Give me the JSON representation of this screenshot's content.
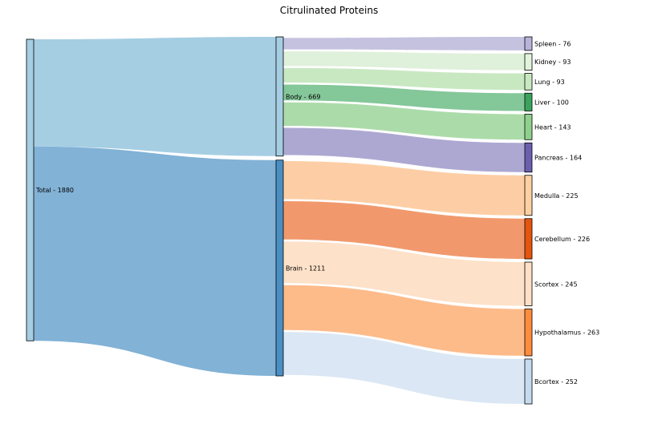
{
  "chart_data": {
    "type": "sankey",
    "title": "Citrulinated Proteins",
    "nodes": [
      {
        "id": "total",
        "label": "Total - 1880",
        "column": 0,
        "color": "#a6cee3"
      },
      {
        "id": "body",
        "label": "Body - 669",
        "column": 1,
        "color": "#a6cee3"
      },
      {
        "id": "brain",
        "label": "Brain - 1211",
        "column": 1,
        "color": "#4a8fc4"
      },
      {
        "id": "spleen",
        "label": "Spleen - 76",
        "column": 2,
        "color": "#b8b3d9"
      },
      {
        "id": "kidney",
        "label": "Kidney - 93",
        "column": 2,
        "color": "#e2f3dc"
      },
      {
        "id": "lung",
        "label": "Lung - 93",
        "column": 2,
        "color": "#c7e9c0"
      },
      {
        "id": "liver",
        "label": "Liver - 100",
        "column": 2,
        "color": "#3ba45c"
      },
      {
        "id": "heart",
        "label": "Heart - 143",
        "column": 2,
        "color": "#8fd18c"
      },
      {
        "id": "pancreas",
        "label": "Pancreas - 164",
        "column": 2,
        "color": "#6b5fad"
      },
      {
        "id": "medulla",
        "label": "Medulla - 225",
        "column": 2,
        "color": "#fdd0a2"
      },
      {
        "id": "cerebellum",
        "label": "Cerebellum - 226",
        "column": 2,
        "color": "#e6550d"
      },
      {
        "id": "scortex",
        "label": "Scortex - 245",
        "column": 2,
        "color": "#fde0c5"
      },
      {
        "id": "hypothalamus",
        "label": "Hypothalamus - 263",
        "column": 2,
        "color": "#fd8d3c"
      },
      {
        "id": "bcortex",
        "label": "Bcortex - 252",
        "column": 2,
        "color": "#c6dbef"
      }
    ],
    "links": [
      {
        "source": "total",
        "target": "body",
        "value": 669,
        "color": "#a6cee3"
      },
      {
        "source": "total",
        "target": "brain",
        "value": 1211,
        "color": "#82b2d6"
      },
      {
        "source": "body",
        "target": "spleen",
        "value": 76,
        "color": "#c5c2e0"
      },
      {
        "source": "body",
        "target": "kidney",
        "value": 93,
        "color": "#dff0db"
      },
      {
        "source": "body",
        "target": "lung",
        "value": 93,
        "color": "#c8e8c2"
      },
      {
        "source": "body",
        "target": "liver",
        "value": 100,
        "color": "#84c799"
      },
      {
        "source": "body",
        "target": "heart",
        "value": 143,
        "color": "#acdbaa"
      },
      {
        "source": "body",
        "target": "pancreas",
        "value": 164,
        "color": "#ada8d2"
      },
      {
        "source": "brain",
        "target": "medulla",
        "value": 225,
        "color": "#fdcea5"
      },
      {
        "source": "brain",
        "target": "cerebellum",
        "value": 226,
        "color": "#f1996d"
      },
      {
        "source": "brain",
        "target": "scortex",
        "value": 245,
        "color": "#fde1c8"
      },
      {
        "source": "brain",
        "target": "hypothalamus",
        "value": 263,
        "color": "#fdbb8a"
      },
      {
        "source": "brain",
        "target": "bcortex",
        "value": 252,
        "color": "#dbe7f4"
      }
    ]
  }
}
